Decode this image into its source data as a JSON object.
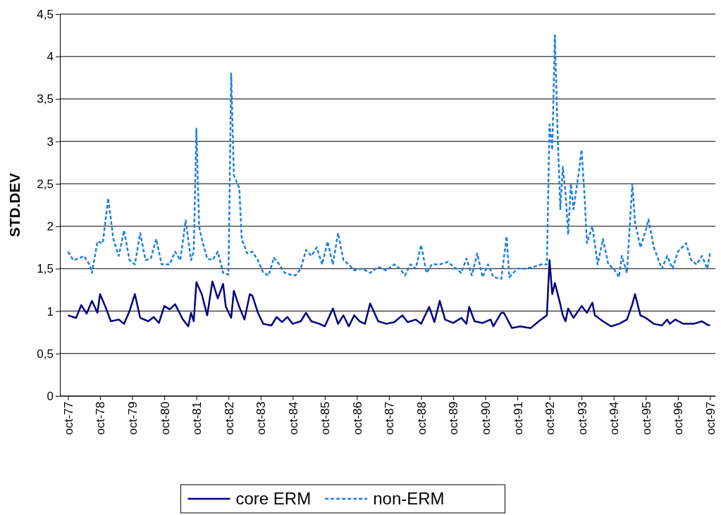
{
  "chart_data": {
    "type": "line",
    "ylabel": "STD.DEV",
    "xlim": [
      "1977-07",
      "1997-12"
    ],
    "ylim": [
      0,
      4.5
    ],
    "yticks": [
      0,
      {
        "value": 0.5,
        "label": "0,5"
      },
      1,
      {
        "value": 1.5,
        "label": "1,5"
      },
      2,
      {
        "value": 2.5,
        "label": "2,5"
      },
      3,
      {
        "value": 3.5,
        "label": "3,5"
      },
      4,
      {
        "value": 4.5,
        "label": "4,5"
      }
    ],
    "xticks": [
      {
        "value": "1977-10",
        "label": "oct-77"
      },
      {
        "value": "1978-10",
        "label": "oct-78"
      },
      {
        "value": "1979-10",
        "label": "oct-79"
      },
      {
        "value": "1980-10",
        "label": "oct-80"
      },
      {
        "value": "1981-10",
        "label": "oct-81"
      },
      {
        "value": "1982-10",
        "label": "oct-82"
      },
      {
        "value": "1983-10",
        "label": "oct-83"
      },
      {
        "value": "1984-10",
        "label": "oct-84"
      },
      {
        "value": "1985-10",
        "label": "oct-85"
      },
      {
        "value": "1986-10",
        "label": "oct-86"
      },
      {
        "value": "1987-10",
        "label": "oct-87"
      },
      {
        "value": "1988-10",
        "label": "oct-88"
      },
      {
        "value": "1989-10",
        "label": "oct-89"
      },
      {
        "value": "1990-10",
        "label": "oct-90"
      },
      {
        "value": "1991-10",
        "label": "oct-91"
      },
      {
        "value": "1992-10",
        "label": "oct-92"
      },
      {
        "value": "1993-10",
        "label": "oct-93"
      },
      {
        "value": "1994-10",
        "label": "oct-94"
      },
      {
        "value": "1995-10",
        "label": "oct-95"
      },
      {
        "value": "1996-10",
        "label": "oct-96"
      },
      {
        "value": "1997-10",
        "label": "oct-97"
      }
    ],
    "grid": "y",
    "legend": "bottom",
    "series": [
      {
        "name": "core ERM",
        "color": "#000080",
        "line_style": "solid",
        "x": [
          "1977-10",
          "1978-01",
          "1978-03",
          "1978-05",
          "1978-07",
          "1978-09",
          "1978-10",
          "1978-12",
          "1979-02",
          "1979-05",
          "1979-07",
          "1979-09",
          "1979-11",
          "1980-01",
          "1980-04",
          "1980-06",
          "1980-08",
          "1980-10",
          "1980-12",
          "1981-02",
          "1981-05",
          "1981-07",
          "1981-08",
          "1981-09",
          "1981-10",
          "1981-12",
          "1982-02",
          "1982-04",
          "1982-06",
          "1982-08",
          "1982-09",
          "1982-11",
          "1982-12",
          "1983-02",
          "1983-04",
          "1983-06",
          "1983-07",
          "1983-09",
          "1983-11",
          "1984-02",
          "1984-04",
          "1984-06",
          "1984-08",
          "1984-10",
          "1985-01",
          "1985-03",
          "1985-05",
          "1985-08",
          "1985-10",
          "1986-01",
          "1986-03",
          "1986-05",
          "1986-07",
          "1986-09",
          "1986-11",
          "1987-01",
          "1987-03",
          "1987-06",
          "1987-09",
          "1987-12",
          "1988-03",
          "1988-05",
          "1988-08",
          "1988-10",
          "1989-01",
          "1989-03",
          "1989-05",
          "1989-07",
          "1989-10",
          "1990-01",
          "1990-03",
          "1990-04",
          "1990-06",
          "1990-09",
          "1990-12",
          "1991-01",
          "1991-04",
          "1991-05",
          "1991-08",
          "1991-11",
          "1992-03",
          "1992-06",
          "1992-09",
          "1992-10",
          "1992-11",
          "1992-12",
          "1993-02",
          "1993-03",
          "1993-04",
          "1993-05",
          "1993-07",
          "1993-10",
          "1993-12",
          "1994-02",
          "1994-03",
          "1994-06",
          "1994-09",
          "1994-12",
          "1995-03",
          "1995-05",
          "1995-06",
          "1995-08",
          "1995-10",
          "1996-01",
          "1996-04",
          "1996-06",
          "1996-07",
          "1996-09",
          "1996-12",
          "1997-04",
          "1997-07",
          "1997-09",
          "1997-10"
        ],
        "values": [
          0.95,
          0.92,
          1.07,
          0.97,
          1.12,
          0.98,
          1.2,
          1.05,
          0.88,
          0.9,
          0.85,
          1.0,
          1.2,
          0.92,
          0.88,
          0.93,
          0.86,
          1.06,
          1.02,
          1.08,
          0.9,
          0.82,
          0.98,
          0.88,
          1.34,
          1.2,
          0.95,
          1.35,
          1.15,
          1.32,
          1.05,
          0.92,
          1.24,
          1.05,
          0.9,
          1.2,
          1.18,
          0.98,
          0.85,
          0.83,
          0.93,
          0.87,
          0.93,
          0.85,
          0.88,
          0.98,
          0.88,
          0.85,
          0.82,
          1.03,
          0.85,
          0.95,
          0.82,
          0.95,
          0.88,
          0.85,
          1.09,
          0.88,
          0.85,
          0.87,
          0.95,
          0.87,
          0.9,
          0.85,
          1.05,
          0.87,
          1.12,
          0.9,
          0.86,
          0.92,
          0.85,
          1.05,
          0.88,
          0.86,
          0.9,
          0.82,
          0.98,
          0.98,
          0.8,
          0.82,
          0.8,
          0.88,
          0.95,
          1.6,
          1.2,
          1.33,
          1.08,
          0.95,
          0.88,
          1.03,
          0.92,
          1.06,
          0.98,
          1.1,
          0.95,
          0.88,
          0.82,
          0.85,
          0.9,
          1.08,
          1.2,
          0.95,
          0.92,
          0.85,
          0.83,
          0.9,
          0.85,
          0.9,
          0.85,
          0.85,
          0.88,
          0.84,
          0.83
        ]
      },
      {
        "name": "non-ERM",
        "color": "#1f7fe0",
        "line_style": "dashed",
        "x": [
          "1977-10",
          "1977-12",
          "1978-02",
          "1978-04",
          "1978-06",
          "1978-07",
          "1978-09",
          "1978-11",
          "1979-01",
          "1979-03",
          "1979-05",
          "1979-07",
          "1979-09",
          "1979-11",
          "1980-01",
          "1980-03",
          "1980-05",
          "1980-07",
          "1980-09",
          "1980-12",
          "1981-02",
          "1981-04",
          "1981-06",
          "1981-08",
          "1981-09",
          "1981-10",
          "1981-11",
          "1981-12",
          "1982-02",
          "1982-04",
          "1982-06",
          "1982-08",
          "1982-10",
          "1982-11",
          "1982-12",
          "1983-02",
          "1983-03",
          "1983-05",
          "1983-07",
          "1983-09",
          "1983-11",
          "1984-01",
          "1984-03",
          "1984-05",
          "1984-07",
          "1984-09",
          "1984-11",
          "1985-01",
          "1985-03",
          "1985-05",
          "1985-07",
          "1985-09",
          "1985-11",
          "1986-01",
          "1986-03",
          "1986-05",
          "1986-07",
          "1986-09",
          "1986-12",
          "1987-03",
          "1987-06",
          "1987-09",
          "1987-12",
          "1988-02",
          "1988-04",
          "1988-06",
          "1988-08",
          "1988-10",
          "1988-12",
          "1989-02",
          "1989-05",
          "1989-08",
          "1989-11",
          "1990-01",
          "1990-03",
          "1990-05",
          "1990-07",
          "1990-09",
          "1990-11",
          "1991-01",
          "1991-04",
          "1991-06",
          "1991-07",
          "1991-10",
          "1992-01",
          "1992-04",
          "1992-07",
          "1992-09",
          "1992-10",
          "1992-11",
          "1992-12",
          "1993-01",
          "1993-02",
          "1993-03",
          "1993-04",
          "1993-05",
          "1993-06",
          "1993-07",
          "1993-09",
          "1993-10",
          "1993-11",
          "1993-12",
          "1994-02",
          "1994-04",
          "1994-06",
          "1994-08",
          "1994-10",
          "1994-12",
          "1995-01",
          "1995-03",
          "1995-05",
          "1995-06",
          "1995-08",
          "1995-10",
          "1995-11",
          "1996-01",
          "1996-04",
          "1996-06",
          "1996-08",
          "1996-10",
          "1997-01",
          "1997-03",
          "1997-05",
          "1997-07",
          "1997-09",
          "1997-10"
        ],
        "values": [
          1.7,
          1.6,
          1.62,
          1.65,
          1.55,
          1.45,
          1.82,
          1.8,
          2.33,
          1.85,
          1.65,
          1.95,
          1.6,
          1.55,
          1.92,
          1.6,
          1.62,
          1.85,
          1.55,
          1.55,
          1.7,
          1.6,
          2.07,
          1.6,
          1.7,
          3.15,
          2.0,
          1.85,
          1.62,
          1.6,
          1.7,
          1.45,
          1.43,
          3.8,
          2.6,
          2.45,
          1.85,
          1.68,
          1.7,
          1.6,
          1.45,
          1.42,
          1.63,
          1.55,
          1.45,
          1.43,
          1.42,
          1.5,
          1.72,
          1.65,
          1.75,
          1.55,
          1.82,
          1.55,
          1.92,
          1.6,
          1.55,
          1.48,
          1.5,
          1.45,
          1.52,
          1.48,
          1.55,
          1.5,
          1.42,
          1.55,
          1.5,
          1.78,
          1.45,
          1.55,
          1.55,
          1.58,
          1.5,
          1.45,
          1.62,
          1.42,
          1.68,
          1.4,
          1.55,
          1.4,
          1.38,
          1.88,
          1.4,
          1.5,
          1.5,
          1.52,
          1.55,
          1.55,
          3.2,
          2.9,
          4.25,
          3.1,
          2.2,
          2.7,
          2.4,
          1.9,
          2.5,
          2.2,
          2.65,
          2.9,
          2.4,
          1.8,
          2.0,
          1.55,
          1.85,
          1.55,
          1.5,
          1.4,
          1.65,
          1.45,
          2.5,
          2.05,
          1.75,
          1.95,
          2.08,
          1.75,
          1.5,
          1.65,
          1.5,
          1.7,
          1.8,
          1.6,
          1.55,
          1.65,
          1.5,
          1.68
        ]
      }
    ]
  }
}
